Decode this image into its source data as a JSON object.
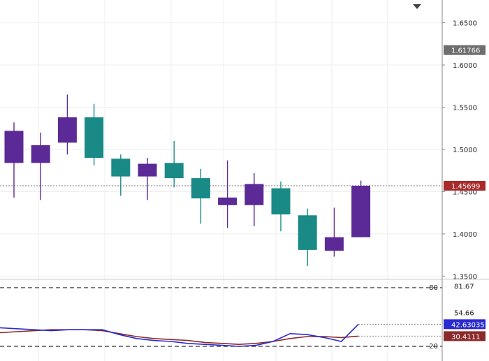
{
  "chart_data": {
    "type": "candlestick",
    "colors": {
      "up": "#5b2a96",
      "down": "#1a8a86",
      "current_price_tag": "#a82a2a",
      "last_price_tag": "#6e6e6e",
      "k_line": "#2a2ad0",
      "d_line": "#8a2a2a",
      "k_tag": "#2a2ad0",
      "d_tag": "#8a2a2a"
    },
    "price_axis": {
      "ticks": [
        "1.6500",
        "1.6000",
        "1.5500",
        "1.5000",
        "1.4500",
        "1.4000",
        "1.3500"
      ],
      "tick_values": [
        1.65,
        1.6,
        1.55,
        1.5,
        1.45,
        1.4,
        1.35
      ],
      "range": [
        1.347,
        1.672
      ]
    },
    "last_price_tag": {
      "label": "1.61766",
      "value": 1.61766
    },
    "current_price_tag": {
      "label": "1.45699",
      "value": 1.45699
    },
    "candles": [
      {
        "open": 1.484,
        "high": 1.532,
        "low": 1.443,
        "close": 1.522
      },
      {
        "open": 1.484,
        "high": 1.52,
        "low": 1.44,
        "close": 1.505
      },
      {
        "open": 1.508,
        "high": 1.565,
        "low": 1.494,
        "close": 1.538
      },
      {
        "open": 1.538,
        "high": 1.554,
        "low": 1.481,
        "close": 1.49
      },
      {
        "open": 1.489,
        "high": 1.494,
        "low": 1.445,
        "close": 1.468
      },
      {
        "open": 1.468,
        "high": 1.49,
        "low": 1.44,
        "close": 1.483
      },
      {
        "open": 1.484,
        "high": 1.51,
        "low": 1.455,
        "close": 1.466
      },
      {
        "open": 1.466,
        "high": 1.477,
        "low": 1.412,
        "close": 1.442
      },
      {
        "open": 1.434,
        "high": 1.487,
        "low": 1.407,
        "close": 1.443
      },
      {
        "open": 1.434,
        "high": 1.472,
        "low": 1.409,
        "close": 1.459
      },
      {
        "open": 1.454,
        "high": 1.462,
        "low": 1.403,
        "close": 1.423
      },
      {
        "open": 1.422,
        "high": 1.43,
        "low": 1.362,
        "close": 1.381
      },
      {
        "open": 1.38,
        "high": 1.431,
        "low": 1.373,
        "close": 1.396
      },
      {
        "open": 1.396,
        "high": 1.463,
        "low": 1.396,
        "close": 1.457
      }
    ],
    "oscillator": {
      "levels": [
        "80",
        "20"
      ],
      "level_values": [
        80,
        20
      ],
      "axis_labels": [
        "81.67",
        "54.66"
      ],
      "axis_label_values": [
        81.67,
        54.66
      ],
      "k_tag": {
        "label": "42.63035",
        "value": 42.63
      },
      "d_tag": {
        "label": "30.4111",
        "value": 30.41
      },
      "k_values": [
        39,
        38,
        37,
        36,
        37,
        37,
        37,
        32,
        28,
        26,
        25,
        23,
        22,
        21,
        20,
        21,
        25,
        33,
        32,
        29,
        25,
        42.6
      ],
      "d_values": [
        34,
        35,
        36,
        37,
        37,
        37,
        36,
        33,
        30,
        28,
        27,
        26,
        24,
        23,
        22,
        23,
        25,
        28,
        30,
        30,
        29,
        30.4
      ]
    }
  }
}
